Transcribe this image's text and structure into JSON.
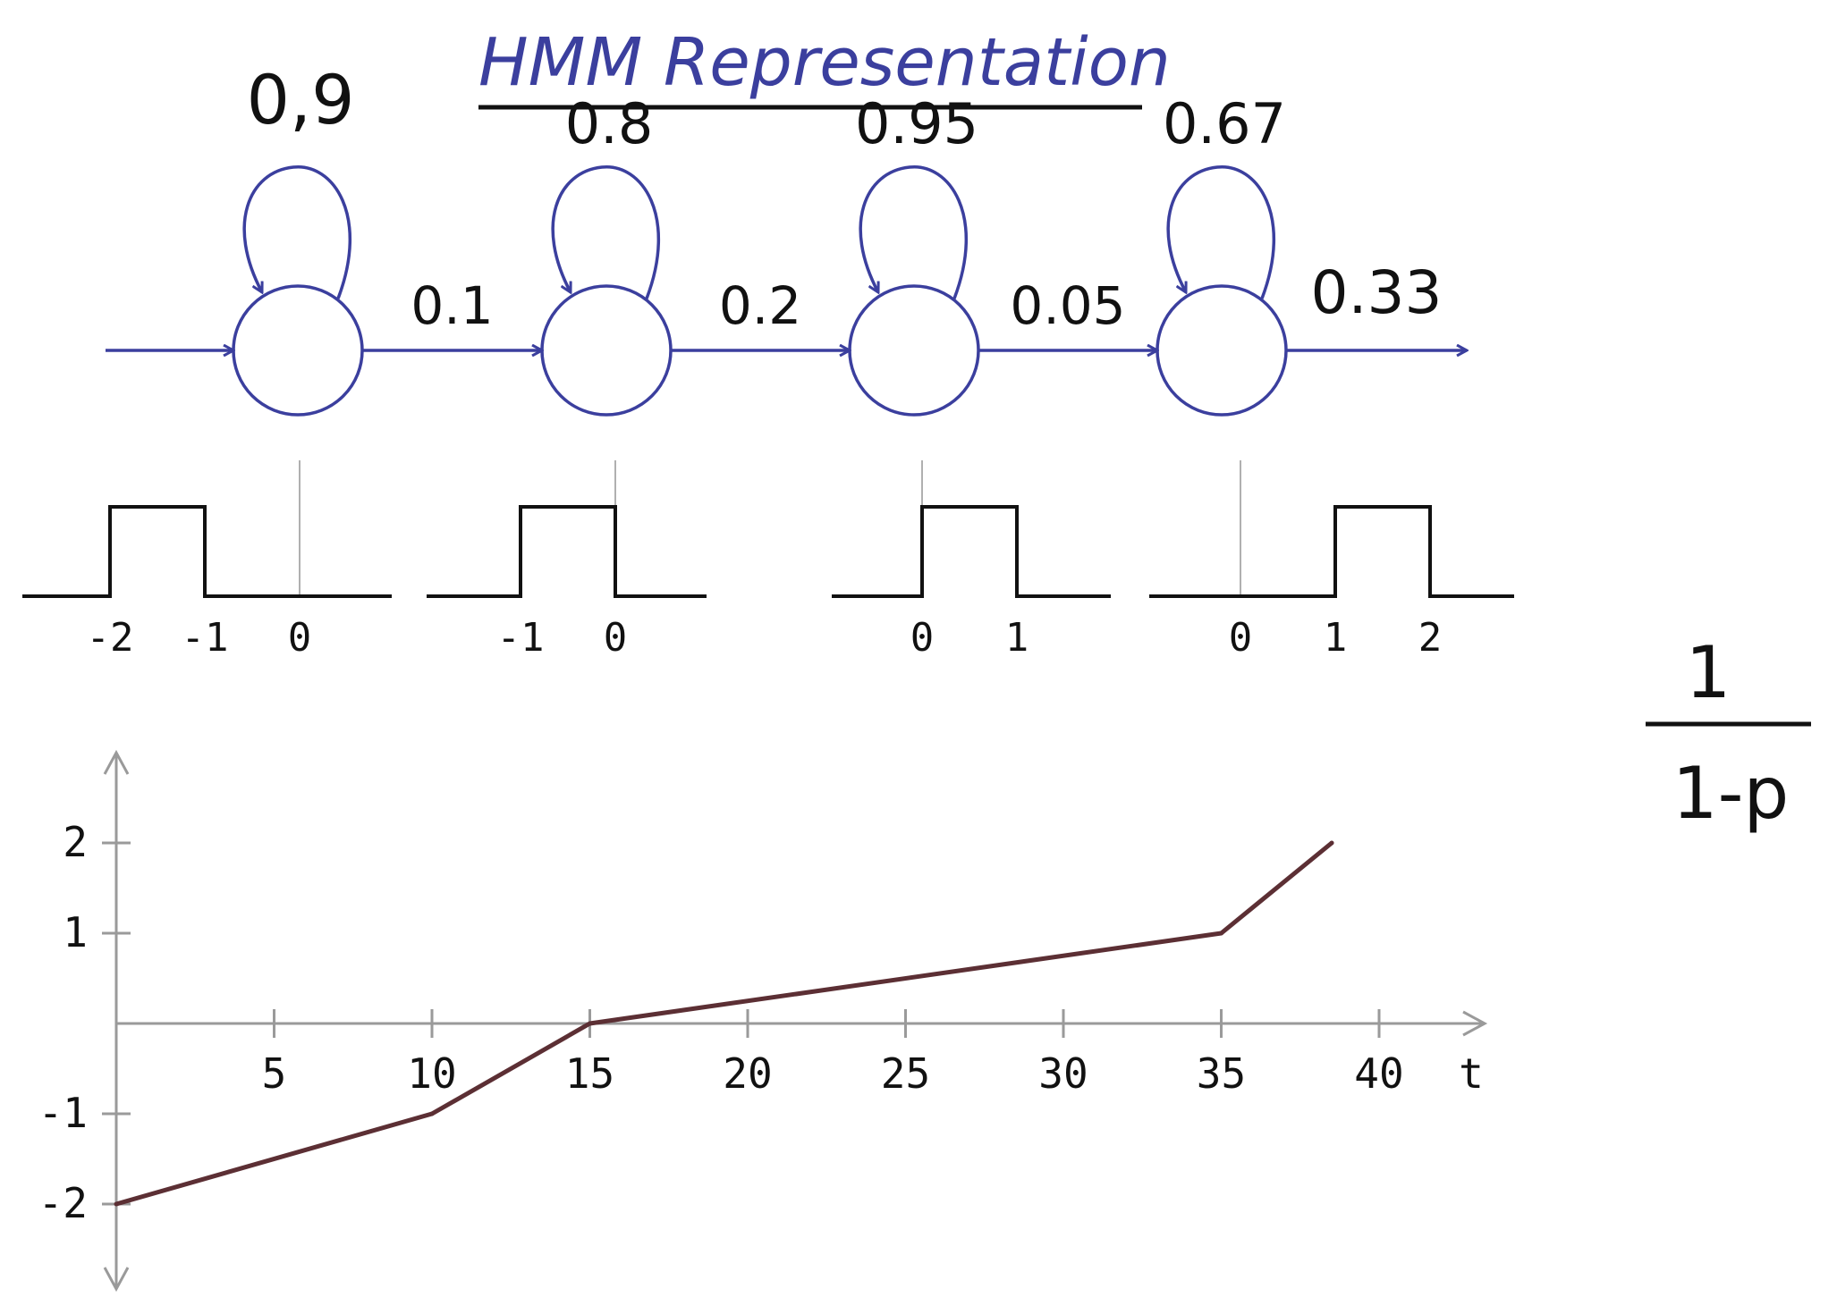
{
  "title": "HMM Representation",
  "colors": {
    "states": "#3b3f9e",
    "ink": "#111111",
    "axis": "#9a9a9a",
    "line": "#5c2f34"
  },
  "states": [
    {
      "self_prob": "0,9",
      "out_prob": "0.1",
      "ticks": [
        "-2",
        "-1",
        "0"
      ],
      "pulse": [
        -2,
        -1
      ],
      "marker": 0
    },
    {
      "self_prob": "0.8",
      "out_prob": "0.2",
      "ticks": [
        "-1",
        "0"
      ],
      "pulse": [
        -1,
        0
      ],
      "marker": 0
    },
    {
      "self_prob": "0.95",
      "out_prob": "0.05",
      "ticks": [
        "0",
        "1"
      ],
      "pulse": [
        0,
        1
      ],
      "marker": 0
    },
    {
      "self_prob": "0.67",
      "out_prob": "0.33",
      "ticks": [
        "0",
        "1",
        "2"
      ],
      "pulse": [
        1,
        2
      ],
      "marker": 0
    }
  ],
  "formula": {
    "numerator": "1",
    "denominator": "1-p"
  },
  "chart_data": {
    "type": "line",
    "xlabel": "t",
    "x_ticks": [
      "5",
      "10",
      "15",
      "20",
      "25",
      "30",
      "35",
      "40"
    ],
    "y_ticks": [
      "2",
      "1",
      "-1",
      "-2"
    ],
    "xlim": [
      0,
      42
    ],
    "ylim": [
      -2.9,
      2.9
    ],
    "series": [
      {
        "x": [
          0,
          10,
          15,
          35,
          38.5
        ],
        "y": [
          -2,
          -1,
          0,
          1,
          2
        ]
      }
    ]
  }
}
